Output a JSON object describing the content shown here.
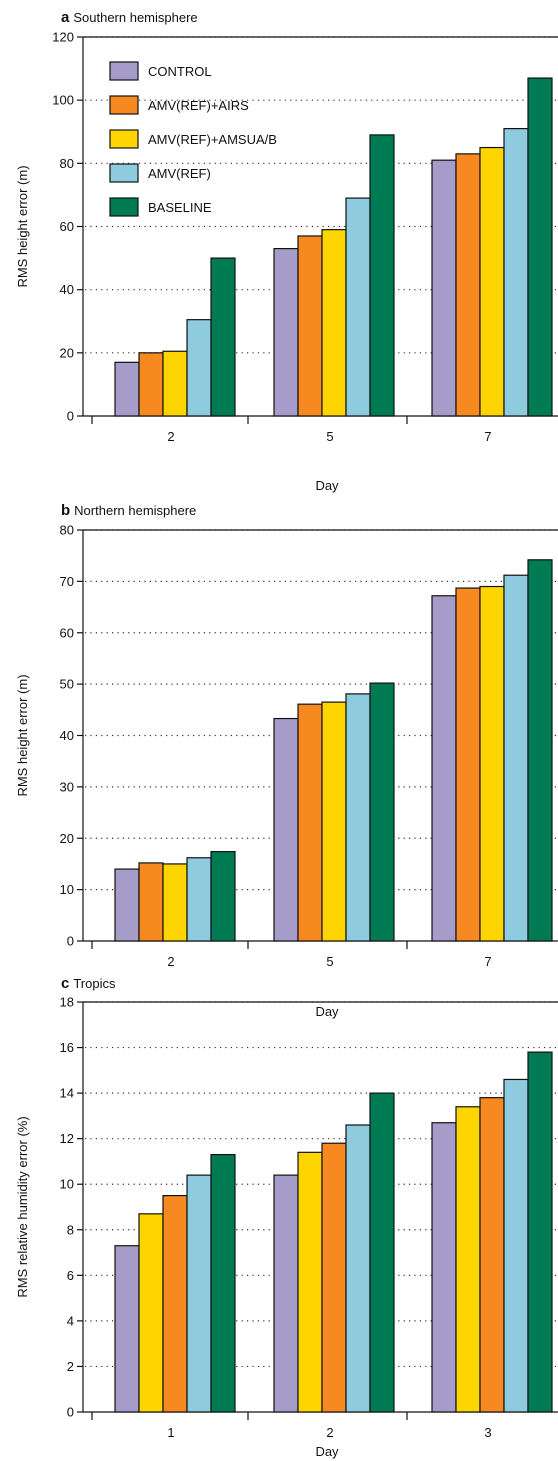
{
  "chart_data": [
    {
      "type": "bar",
      "panel_letter": "a",
      "title": "Southern hemisphere",
      "xlabel": "Day",
      "ylabel": "RMS height error (m)",
      "ylim": [
        0,
        120
      ],
      "yticks": [
        0,
        20,
        40,
        60,
        80,
        100,
        120
      ],
      "grid": "dotted horizontal",
      "legend": "top-left",
      "categories": [
        "2",
        "5",
        "7"
      ],
      "series": [
        {
          "name": "CONTROL",
          "color": "#a59cc9",
          "values": [
            17,
            53,
            81
          ]
        },
        {
          "name": "AMV(REF)+AIRS",
          "color": "#f6891f",
          "values": [
            20,
            57,
            83
          ]
        },
        {
          "name": "AMV(REF)+AMSUA/B",
          "color": "#ffd500",
          "values": [
            20.5,
            59,
            85
          ]
        },
        {
          "name": "AMV(REF)",
          "color": "#8ecbdf",
          "values": [
            30.5,
            69,
            91
          ]
        },
        {
          "name": "BASELINE",
          "color": "#007a53",
          "values": [
            50,
            89,
            107
          ]
        }
      ]
    },
    {
      "type": "bar",
      "panel_letter": "b",
      "title": "Northern hemisphere",
      "xlabel": "Day",
      "ylabel": "RMS height error (m)",
      "ylim": [
        0,
        80
      ],
      "yticks": [
        0,
        10,
        20,
        30,
        40,
        50,
        60,
        70,
        80
      ],
      "grid": "dotted horizontal",
      "categories": [
        "2",
        "5",
        "7"
      ],
      "series": [
        {
          "name": "CONTROL",
          "color": "#a59cc9",
          "values": [
            14,
            43.3,
            67.2
          ]
        },
        {
          "name": "AMV(REF)+AIRS",
          "color": "#f6891f",
          "values": [
            15.2,
            46.1,
            68.7
          ]
        },
        {
          "name": "AMV(REF)+AMSUA/B",
          "color": "#ffd500",
          "values": [
            15,
            46.5,
            69
          ]
        },
        {
          "name": "AMV(REF)",
          "color": "#8ecbdf",
          "values": [
            16.2,
            48.1,
            71.2
          ]
        },
        {
          "name": "BASELINE",
          "color": "#007a53",
          "values": [
            17.4,
            50.2,
            74.2
          ]
        }
      ]
    },
    {
      "type": "bar",
      "panel_letter": "c",
      "title": "Tropics",
      "xlabel": "Day",
      "ylabel": "RMS relative humidity error (%)",
      "ylim": [
        0,
        18
      ],
      "yticks": [
        0,
        2,
        4,
        6,
        8,
        10,
        12,
        14,
        16,
        18
      ],
      "grid": "dotted horizontal",
      "categories": [
        "1",
        "2",
        "3"
      ],
      "series": [
        {
          "name": "CONTROL",
          "color": "#a59cc9",
          "values": [
            7.3,
            10.4,
            12.7
          ]
        },
        {
          "name": "AMV(REF)+AMSUA/B",
          "color": "#ffd500",
          "values": [
            8.7,
            11.4,
            13.4
          ]
        },
        {
          "name": "AMV(REF)+AIRS",
          "color": "#f6891f",
          "values": [
            9.5,
            11.8,
            13.8
          ]
        },
        {
          "name": "AMV(REF)",
          "color": "#8ecbdf",
          "values": [
            10.4,
            12.6,
            14.6
          ]
        },
        {
          "name": "BASELINE",
          "color": "#007a53",
          "values": [
            11.3,
            14,
            15.8
          ]
        }
      ]
    }
  ]
}
